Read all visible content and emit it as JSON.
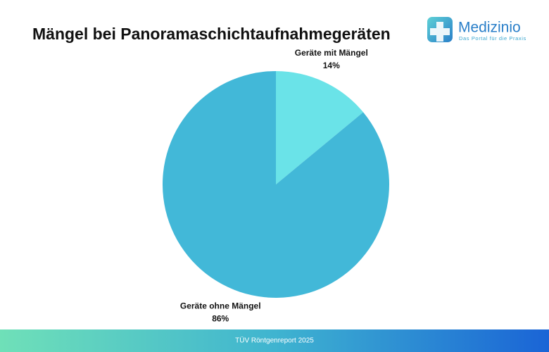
{
  "chart_data": {
    "type": "pie",
    "title": "Mängel bei Panoramaschichtaufnahmegeräten",
    "categories": [
      "Geräte mit Mängel",
      "Geräte ohne Mängel"
    ],
    "values": [
      14,
      86
    ],
    "value_labels": [
      "14%",
      "86%"
    ],
    "colors": [
      "#6ae3e8",
      "#42b8d8"
    ],
    "source": "TÜV Röntgenreport 2025"
  },
  "logo": {
    "name": "Medizinio",
    "tagline": "Das Portal für die Praxis"
  }
}
